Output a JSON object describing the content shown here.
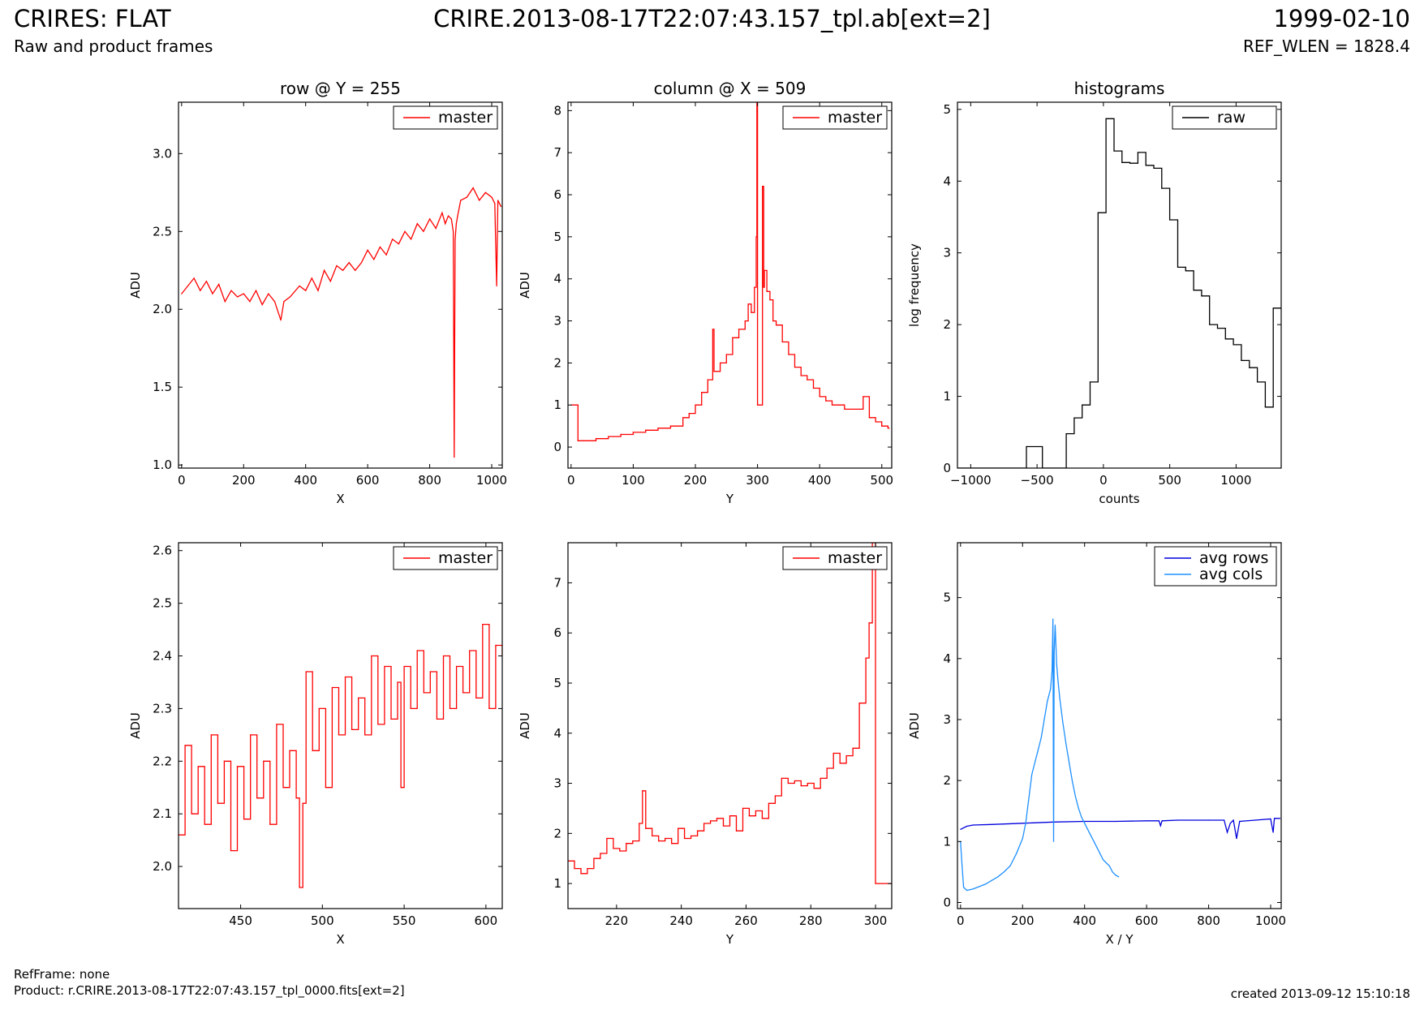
{
  "header": {
    "title": "CRIRES: FLAT",
    "subtitle": "Raw and product frames",
    "filename": "CRIRE.2013-08-17T22:07:43.157_tpl.ab[ext=2]",
    "date": "1999-02-10",
    "ref_wlen": "REF_WLEN = 1828.4"
  },
  "footer": {
    "ref_frame": "RefFrame: none",
    "product": "Product: r.CRIRE.2013-08-17T22:07:43.157_tpl_0000.fits[ext=2]",
    "created": "created 2013-09-12 15:10:18"
  },
  "colors": {
    "master": "#ff0000",
    "raw": "#000000",
    "avg_rows": "#0000dd",
    "avg_cols": "#1e90ff"
  },
  "chart_data": [
    {
      "type": "line",
      "title": "row @ Y = 255",
      "xlabel": "X",
      "ylabel": "ADU",
      "xlim": [
        -10,
        1034
      ],
      "ylim": [
        0.98,
        3.33
      ],
      "xticks": [
        0,
        200,
        400,
        600,
        800,
        1000
      ],
      "yticks": [
        1.0,
        1.5,
        2.0,
        2.5,
        3.0
      ],
      "ytick_decimals": 1,
      "legend": "top-right",
      "series": [
        {
          "name": "master",
          "color": "#ff0000",
          "step": false,
          "x": [
            0,
            20,
            40,
            60,
            80,
            100,
            120,
            140,
            160,
            180,
            200,
            220,
            240,
            260,
            280,
            300,
            320,
            330,
            350,
            380,
            400,
            420,
            440,
            460,
            480,
            500,
            520,
            540,
            560,
            580,
            600,
            620,
            640,
            660,
            680,
            700,
            720,
            740,
            760,
            780,
            800,
            820,
            840,
            850,
            860,
            870,
            876,
            879,
            882,
            886,
            890,
            900,
            920,
            940,
            960,
            980,
            1000,
            1010,
            1016,
            1020,
            1030
          ],
          "y": [
            2.1,
            2.15,
            2.2,
            2.12,
            2.18,
            2.1,
            2.16,
            2.05,
            2.12,
            2.08,
            2.1,
            2.05,
            2.12,
            2.03,
            2.1,
            2.05,
            1.93,
            2.05,
            2.08,
            2.15,
            2.12,
            2.2,
            2.12,
            2.25,
            2.18,
            2.28,
            2.25,
            2.3,
            2.25,
            2.3,
            2.38,
            2.32,
            2.4,
            2.35,
            2.45,
            2.42,
            2.5,
            2.45,
            2.55,
            2.5,
            2.58,
            2.52,
            2.62,
            2.55,
            2.6,
            2.58,
            2.5,
            1.05,
            2.45,
            2.55,
            2.6,
            2.7,
            2.72,
            2.78,
            2.7,
            2.75,
            2.72,
            2.68,
            2.15,
            2.7,
            2.66
          ]
        }
      ]
    },
    {
      "type": "line",
      "title": "column @ X = 509",
      "xlabel": "Y",
      "ylabel": "ADU",
      "xlim": [
        -5,
        516
      ],
      "ylim": [
        -0.5,
        8.2
      ],
      "xticks": [
        0,
        100,
        200,
        300,
        400,
        500
      ],
      "yticks": [
        0,
        1,
        2,
        3,
        4,
        5,
        6,
        7,
        8
      ],
      "ytick_decimals": 0,
      "legend": "top-right",
      "series": [
        {
          "name": "master",
          "color": "#ff0000",
          "step": true,
          "x": [
            0,
            10,
            11,
            20,
            40,
            60,
            80,
            100,
            120,
            140,
            160,
            180,
            190,
            200,
            210,
            220,
            228,
            230,
            240,
            250,
            260,
            270,
            280,
            285,
            290,
            295,
            298,
            299,
            300,
            302,
            308,
            310,
            311,
            315,
            320,
            325,
            330,
            340,
            350,
            360,
            370,
            380,
            390,
            400,
            410,
            420,
            430,
            440,
            470,
            480,
            490,
            500,
            510,
            512
          ],
          "y": [
            1.0,
            1.0,
            0.15,
            0.15,
            0.2,
            0.25,
            0.3,
            0.35,
            0.4,
            0.45,
            0.5,
            0.7,
            0.8,
            1.0,
            1.3,
            1.6,
            2.8,
            1.8,
            2.0,
            2.2,
            2.6,
            2.8,
            3.0,
            3.4,
            3.2,
            3.8,
            5.0,
            8.5,
            1.0,
            1.0,
            6.2,
            3.8,
            4.2,
            3.7,
            3.5,
            3.0,
            2.9,
            2.5,
            2.2,
            1.9,
            1.7,
            1.6,
            1.4,
            1.2,
            1.1,
            1.0,
            1.0,
            0.9,
            1.2,
            0.7,
            0.6,
            0.5,
            0.45,
            0.45
          ]
        }
      ]
    },
    {
      "type": "line",
      "title": "histograms",
      "xlabel": "counts",
      "ylabel": "log frequency",
      "xlim": [
        -1100,
        1340
      ],
      "ylim": [
        0,
        5.1
      ],
      "xticks": [
        -1000,
        -500,
        0,
        500,
        1000
      ],
      "yticks": [
        0,
        1,
        2,
        3,
        4,
        5
      ],
      "ytick_decimals": 0,
      "legend": "top-right",
      "series": [
        {
          "name": "raw",
          "color": "#000000",
          "step": true,
          "x": [
            -1100,
            -580,
            -460,
            -280,
            -220,
            -160,
            -100,
            -40,
            20,
            80,
            140,
            200,
            260,
            320,
            380,
            440,
            500,
            560,
            620,
            680,
            740,
            800,
            860,
            920,
            980,
            1040,
            1100,
            1160,
            1220,
            1280,
            1340
          ],
          "y": [
            0,
            0.3,
            0,
            0.48,
            0.7,
            0.88,
            1.2,
            3.56,
            4.87,
            4.42,
            4.26,
            4.25,
            4.4,
            4.22,
            4.18,
            3.9,
            3.46,
            2.8,
            2.75,
            2.48,
            2.4,
            2.0,
            1.95,
            1.8,
            1.72,
            1.5,
            1.4,
            1.2,
            0.85,
            2.23,
            2.23
          ]
        }
      ]
    },
    {
      "type": "line",
      "title": "",
      "xlabel": "X",
      "ylabel": "ADU",
      "xlim": [
        412,
        610
      ],
      "ylim": [
        1.92,
        2.615
      ],
      "xticks": [
        450,
        500,
        550,
        600
      ],
      "yticks": [
        2.0,
        2.1,
        2.2,
        2.3,
        2.4,
        2.5,
        2.6
      ],
      "ytick_decimals": 1,
      "legend": "top-right",
      "series": [
        {
          "name": "master",
          "color": "#ff0000",
          "step": true,
          "x": [
            412,
            416,
            420,
            424,
            428,
            432,
            436,
            440,
            444,
            448,
            452,
            456,
            460,
            464,
            468,
            472,
            476,
            480,
            484,
            486,
            488,
            490,
            494,
            498,
            502,
            506,
            510,
            514,
            518,
            522,
            526,
            530,
            534,
            538,
            542,
            546,
            548,
            550,
            554,
            558,
            562,
            566,
            570,
            574,
            578,
            582,
            586,
            590,
            594,
            598,
            602,
            606,
            610
          ],
          "y": [
            2.06,
            2.23,
            2.1,
            2.19,
            2.08,
            2.25,
            2.12,
            2.2,
            2.03,
            2.19,
            2.09,
            2.25,
            2.13,
            2.2,
            2.08,
            2.27,
            2.15,
            2.22,
            2.13,
            1.96,
            2.12,
            2.37,
            2.22,
            2.3,
            2.15,
            2.34,
            2.25,
            2.36,
            2.26,
            2.32,
            2.25,
            2.4,
            2.27,
            2.38,
            2.28,
            2.35,
            2.15,
            2.38,
            2.3,
            2.41,
            2.33,
            2.37,
            2.28,
            2.4,
            2.3,
            2.38,
            2.33,
            2.41,
            2.32,
            2.46,
            2.3,
            2.42,
            2.4
          ]
        }
      ]
    },
    {
      "type": "line",
      "title": "",
      "xlabel": "Y",
      "ylabel": "ADU",
      "xlim": [
        205,
        305
      ],
      "ylim": [
        0.5,
        7.8
      ],
      "xticks": [
        220,
        240,
        260,
        280,
        300
      ],
      "yticks": [
        1,
        2,
        3,
        4,
        5,
        6,
        7
      ],
      "ytick_decimals": 0,
      "legend": "top-right",
      "series": [
        {
          "name": "master",
          "color": "#ff0000",
          "step": true,
          "x": [
            205,
            207,
            209,
            211,
            213,
            215,
            217,
            219,
            221,
            223,
            225,
            227,
            228,
            229,
            231,
            233,
            235,
            237,
            239,
            241,
            243,
            245,
            247,
            249,
            251,
            253,
            255,
            257,
            259,
            261,
            263,
            265,
            267,
            269,
            271,
            273,
            275,
            277,
            279,
            281,
            283,
            285,
            287,
            289,
            291,
            293,
            295,
            297,
            298,
            299,
            300,
            301,
            302,
            305
          ],
          "y": [
            1.45,
            1.3,
            1.2,
            1.3,
            1.5,
            1.6,
            1.9,
            1.7,
            1.65,
            1.8,
            1.85,
            2.2,
            2.85,
            2.1,
            1.95,
            1.85,
            1.9,
            1.8,
            2.1,
            1.9,
            1.95,
            2.05,
            2.2,
            2.25,
            2.3,
            2.15,
            2.35,
            2.05,
            2.5,
            2.35,
            2.45,
            2.3,
            2.6,
            2.75,
            3.1,
            3.0,
            3.05,
            2.95,
            3.0,
            2.9,
            3.1,
            3.3,
            3.6,
            3.4,
            3.55,
            3.7,
            4.6,
            5.5,
            6.2,
            7.8,
            1.0,
            1.0,
            1.0,
            1.0
          ]
        }
      ]
    },
    {
      "type": "line",
      "title": "",
      "xlabel": "X / Y",
      "ylabel": "ADU",
      "xlim": [
        -10,
        1034
      ],
      "ylim": [
        -0.1,
        5.9
      ],
      "xticks": [
        0,
        200,
        400,
        600,
        800,
        1000
      ],
      "yticks": [
        0,
        1,
        2,
        3,
        4,
        5
      ],
      "ytick_decimals": 0,
      "legend": "top-right",
      "series": [
        {
          "name": "avg rows",
          "color": "#0000dd",
          "step": false,
          "x": [
            0,
            20,
            40,
            100,
            200,
            300,
            400,
            500,
            600,
            640,
            645,
            650,
            700,
            800,
            850,
            860,
            870,
            880,
            890,
            900,
            950,
            1000,
            1008,
            1012,
            1020,
            1030
          ],
          "y": [
            1.2,
            1.25,
            1.27,
            1.28,
            1.3,
            1.32,
            1.33,
            1.33,
            1.34,
            1.34,
            1.26,
            1.34,
            1.35,
            1.35,
            1.35,
            1.15,
            1.3,
            1.35,
            1.05,
            1.33,
            1.35,
            1.37,
            1.15,
            1.38,
            1.38,
            1.38
          ]
        },
        {
          "name": "avg cols",
          "color": "#1e90ff",
          "step": false,
          "x": [
            0,
            5,
            10,
            20,
            40,
            60,
            80,
            100,
            120,
            140,
            160,
            180,
            200,
            210,
            220,
            230,
            240,
            250,
            260,
            270,
            280,
            290,
            295,
            298,
            300,
            302,
            305,
            310,
            315,
            320,
            330,
            340,
            350,
            360,
            370,
            380,
            390,
            400,
            410,
            420,
            430,
            440,
            450,
            460,
            470,
            480,
            490,
            500,
            510
          ],
          "y": [
            1.0,
            0.6,
            0.25,
            0.2,
            0.22,
            0.26,
            0.3,
            0.36,
            0.42,
            0.5,
            0.6,
            0.8,
            1.05,
            1.3,
            1.7,
            2.1,
            2.3,
            2.5,
            2.7,
            3.0,
            3.3,
            3.5,
            3.8,
            4.65,
            1.0,
            4.1,
            4.55,
            3.9,
            3.6,
            3.35,
            2.95,
            2.6,
            2.3,
            2.0,
            1.75,
            1.55,
            1.4,
            1.3,
            1.2,
            1.1,
            1.0,
            0.9,
            0.8,
            0.7,
            0.65,
            0.6,
            0.5,
            0.45,
            0.42
          ]
        }
      ]
    }
  ]
}
